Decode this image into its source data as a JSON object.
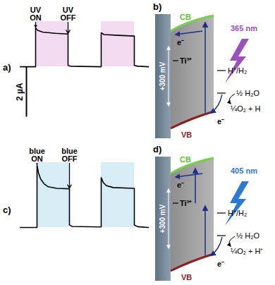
{
  "chart_data": [
    {
      "type": "line",
      "title": "a)",
      "color": "#000000",
      "x": [
        0,
        22,
        22,
        25,
        32,
        50,
        68,
        68,
        72,
        115,
        115,
        119,
        140,
        162,
        162,
        167,
        182
      ],
      "values": [
        0,
        0,
        1.55,
        1.45,
        1.38,
        1.33,
        1.3,
        0.05,
        0.02,
        0,
        1.35,
        1.28,
        1.25,
        1.22,
        0.05,
        0.02,
        0
      ],
      "illumination": [
        {
          "start": 22,
          "end": 68,
          "color": "#f3dbf1"
        },
        {
          "start": 115,
          "end": 162,
          "color": "#f3dbf1"
        }
      ],
      "annotations": [
        {
          "text": "UV\nON",
          "x": 22
        },
        {
          "text": "UV\nOFF",
          "x": 68
        }
      ],
      "scale_bar": {
        "value": 2,
        "label": "2 µA"
      },
      "xlim": [
        0,
        185
      ],
      "ylim": [
        -2.3,
        1.8
      ],
      "xticks": [],
      "yticks": [],
      "tick_labels": false
    },
    {
      "type": "line",
      "title": "c)",
      "color": "#000000",
      "x": [
        0,
        24,
        24,
        26,
        29,
        34,
        40,
        52,
        70,
        70,
        74,
        115,
        115,
        118,
        122,
        132,
        162,
        162,
        167,
        182
      ],
      "values": [
        0,
        0,
        2.5,
        2.2,
        1.95,
        1.75,
        1.63,
        1.57,
        1.55,
        0.1,
        0.04,
        0.02,
        2.0,
        1.8,
        1.68,
        1.6,
        1.57,
        0.1,
        0.03,
        0
      ],
      "illumination": [
        {
          "start": 24,
          "end": 70,
          "color": "#d6edf5"
        },
        {
          "start": 115,
          "end": 162,
          "color": "#d6edf5"
        }
      ],
      "annotations": [
        {
          "text": "blue\nON",
          "x": 24
        },
        {
          "text": "blue\nOFF",
          "x": 70
        }
      ],
      "xlim": [
        0,
        185
      ],
      "ylim": [
        -1.5,
        2.6
      ],
      "xticks": [],
      "yticks": [],
      "tick_labels": false
    }
  ],
  "diagrams": [
    {
      "title": "b)",
      "cb": "CB",
      "vb": "VB",
      "defect": "Ti³⁺",
      "bias": "+300 mV",
      "wavelength": "365 nm",
      "wavelength_color": "#9b4fc0",
      "redox": "H⁺/H₂",
      "water": "½ H₂O",
      "oxygen": "¼O₂ + H",
      "electron": "e⁻"
    },
    {
      "title": "d)",
      "cb": "CB",
      "vb": "VB",
      "defect": "Ti³⁺",
      "bias": "+300 mV",
      "wavelength": "405 nm",
      "wavelength_color": "#2a78d8",
      "redox": "H⁺/H₂",
      "water": "½ H₂O",
      "oxygen": "¼O₂ + H⁺",
      "electron": "e⁻"
    }
  ]
}
